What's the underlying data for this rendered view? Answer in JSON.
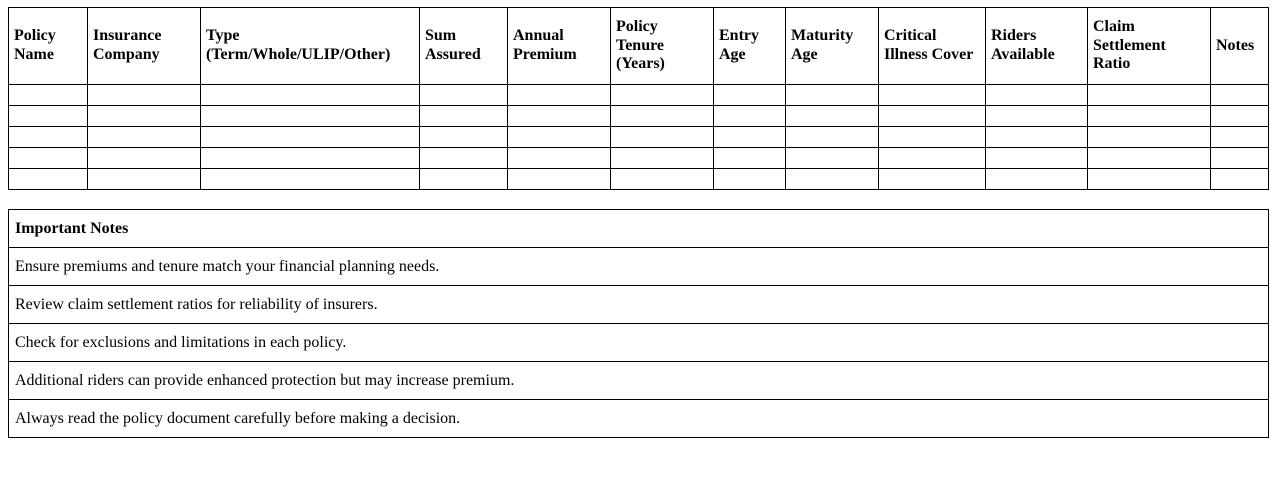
{
  "comparison_table": {
    "columns": [
      "Policy Name",
      "Insurance Company",
      "Type (Term/Whole/ULIP/Other)",
      "Sum Assured",
      "Annual Premium",
      "Policy Tenure (Years)",
      "Entry Age",
      "Maturity Age",
      "Critical Illness Cover",
      "Riders Available",
      "Claim Settlement Ratio",
      "Notes"
    ],
    "empty_row_count": 5
  },
  "notes_table": {
    "header": "Important Notes",
    "notes": [
      "Ensure premiums and tenure match your financial planning needs.",
      "Review claim settlement ratios for reliability of insurers.",
      "Check for exclusions and limitations in each policy.",
      "Additional riders can provide enhanced protection but may increase premium.",
      "Always read the policy document carefully before making a decision."
    ]
  },
  "colors": {
    "border": "#000000",
    "background": "#ffffff",
    "text": "#000000"
  }
}
